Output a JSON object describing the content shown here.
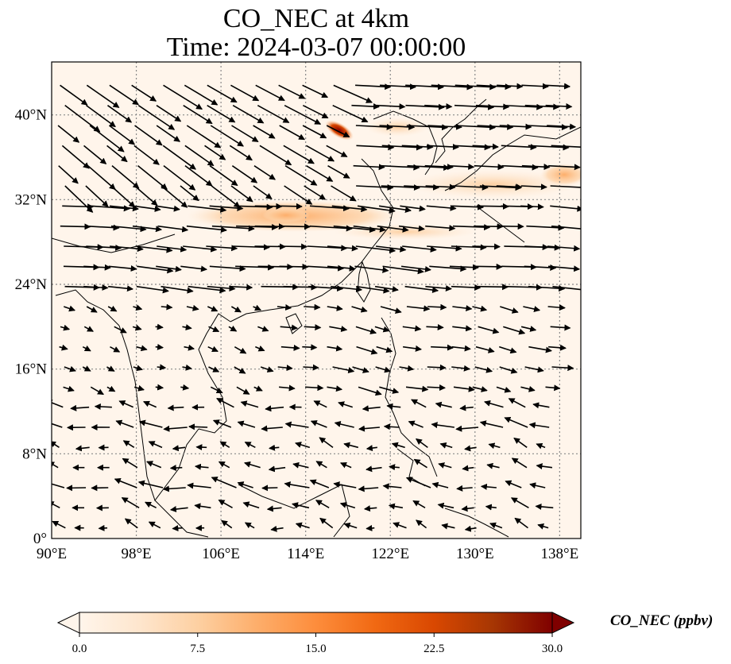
{
  "title": {
    "line1": "CO_NEC at 4km",
    "line2": "Time: 2024-03-07 00:00:00"
  },
  "map": {
    "lon_range": [
      90,
      140
    ],
    "lat_range": [
      0,
      45
    ],
    "lon_ticks": [
      "90°E",
      "98°E",
      "106°E",
      "114°E",
      "122°E",
      "130°E",
      "138°E"
    ],
    "lat_ticks": [
      "0°",
      "8°N",
      "16°N",
      "24°N",
      "32°N",
      "40°N"
    ],
    "gridlines": "dotted",
    "field_colors": {
      "low": "#fff5eb",
      "mid": "#fdae6b",
      "high": "#7f0000"
    }
  },
  "colorbar": {
    "label": "CO_NEC (ppbv)",
    "ticks": [
      "0.0",
      "7.5",
      "15.0",
      "22.5",
      "30.0"
    ],
    "min": 0,
    "max": 30,
    "extend": "both",
    "colors": [
      "#fff5eb",
      "#fee6ce",
      "#fdd0a2",
      "#fdae6b",
      "#fd8d3c",
      "#f16913",
      "#d94801",
      "#a63603",
      "#7f0000"
    ]
  }
}
